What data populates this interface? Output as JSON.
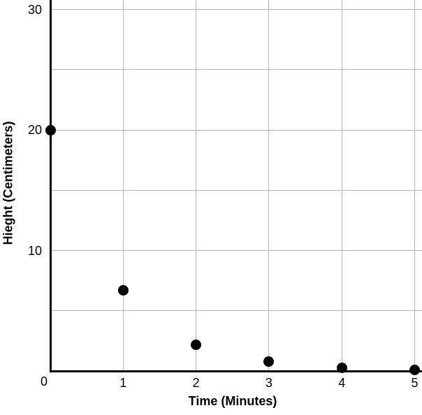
{
  "chart_data": {
    "type": "scatter",
    "title": "",
    "xlabel": "Time (Minutes)",
    "ylabel": "Hieght (Centimeters)",
    "x": [
      0,
      1,
      2,
      3,
      4,
      5
    ],
    "y": [
      20,
      6.7,
      2.2,
      0.8,
      0.25,
      0.1
    ],
    "xlim": [
      0,
      5.1
    ],
    "ylim": [
      0,
      30.8
    ],
    "x_gridlines": [
      1,
      2,
      3,
      4,
      5
    ],
    "y_gridlines": [
      5,
      10,
      15,
      20,
      25,
      30
    ],
    "x_tick_labels": [
      "1",
      "2",
      "3",
      "4",
      "5"
    ],
    "y_tick_labels": [
      "10",
      "20",
      "30"
    ],
    "origin_tick_label": "0",
    "grid": true,
    "legend": false,
    "colors": {
      "point": "#000000",
      "axis": "#000000",
      "grid": "#b3b3b3",
      "background": "#ffffff",
      "text": "#000000"
    }
  }
}
